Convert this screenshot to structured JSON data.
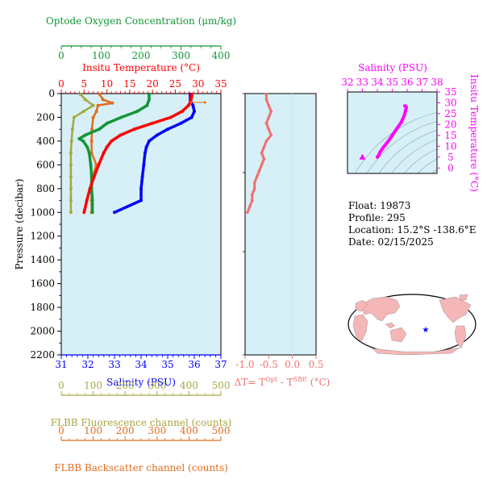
{
  "colors": {
    "panel_bg": "#d7f0f7",
    "oxygen": "#129637",
    "temperature": "#ff0000",
    "salinity": "#0000ff",
    "fluorescence": "#a6a642",
    "backscatter": "#e06c1d",
    "delta_t": "#f07070",
    "ts": "#ff00ff",
    "land": "#f4b6b6",
    "ocean": "#ffffff",
    "float_marker": "#0000ff"
  },
  "info": {
    "float": "Float:  19873",
    "profile": "Profile:  295",
    "location": "Location:  15.2°S  -138.6°E",
    "date": "Date:  02/15/2025"
  },
  "chart_data": [
    {
      "id": "profile",
      "type": "line",
      "ylabel": "Pressure (decibar)",
      "ylim": [
        2200,
        0
      ],
      "yticks": [
        0,
        200,
        400,
        600,
        800,
        1000,
        1200,
        1400,
        1600,
        1800,
        2000,
        2200
      ],
      "axes": {
        "oxygen": {
          "label": "Optode Oxygen Concentration (μm/kg)",
          "lim": [
            0,
            400
          ],
          "ticks": [
            0,
            100,
            200,
            300,
            400
          ]
        },
        "temperature": {
          "label": "Insitu Temperature (°C)",
          "lim": [
            0,
            35
          ],
          "ticks": [
            0,
            5,
            10,
            15,
            20,
            25,
            30,
            35
          ]
        },
        "salinity": {
          "label": "Salinity (PSU)",
          "lim": [
            31,
            37
          ],
          "ticks": [
            31,
            32,
            33,
            34,
            35,
            36,
            37
          ]
        },
        "fluorescence": {
          "label": "FLBB Fluorescence channel (counts)",
          "lim": [
            0,
            500
          ],
          "ticks": [
            0,
            100,
            200,
            300,
            400,
            500
          ]
        },
        "backscatter": {
          "label": "FLBB Backscatter channel (counts)",
          "lim": [
            0,
            500
          ],
          "ticks": [
            0,
            100,
            200,
            300,
            400,
            500
          ]
        }
      },
      "series": [
        {
          "key": "temperature",
          "p": [
            5,
            20,
            40,
            60,
            80,
            100,
            150,
            200,
            250,
            300,
            350,
            400,
            450,
            500,
            600,
            700,
            800,
            900,
            1000
          ],
          "v": [
            28.6,
            28.6,
            28.5,
            28.4,
            28.2,
            27.9,
            26.5,
            24.0,
            20.0,
            16.0,
            13.0,
            11.0,
            10.0,
            9.3,
            8.2,
            7.2,
            6.3,
            5.6,
            5.0
          ]
        },
        {
          "key": "salinity",
          "p": [
            5,
            20,
            40,
            60,
            80,
            100,
            150,
            200,
            250,
            300,
            350,
            400,
            450,
            500,
            600,
            700,
            800,
            900,
            1000
          ],
          "v": [
            35.85,
            35.85,
            35.85,
            35.85,
            35.9,
            35.95,
            36.0,
            35.9,
            35.5,
            35.0,
            34.6,
            34.3,
            34.2,
            34.15,
            34.1,
            34.05,
            34.0,
            34.0,
            33.0
          ]
        },
        {
          "key": "oxygen",
          "p": [
            5,
            50,
            100,
            150,
            200,
            250,
            300,
            350,
            380,
            400,
            450,
            500,
            600,
            700,
            800,
            900,
            1000
          ],
          "v": [
            220,
            220,
            215,
            190,
            150,
            115,
            95,
            60,
            45,
            55,
            65,
            70,
            74,
            76,
            76,
            78,
            78
          ]
        },
        {
          "key": "fluorescence",
          "p": [
            5,
            50,
            100,
            150,
            200,
            300,
            400,
            500,
            600,
            700,
            800,
            900,
            1000
          ],
          "v": [
            60,
            75,
            100,
            70,
            40,
            35,
            32,
            30,
            30,
            30,
            30,
            30,
            30
          ]
        },
        {
          "key": "backscatter",
          "p": [
            5,
            50,
            80,
            100,
            150,
            200,
            300,
            400,
            500,
            600,
            700,
            800,
            900,
            1000
          ],
          "v": [
            120,
            130,
            160,
            115,
            110,
            100,
            96,
            95,
            95,
            110,
            98,
            95,
            95,
            95
          ]
        },
        {
          "key": "temperature_surface_outlier",
          "p": [
            75,
            75
          ],
          "v": [
            28.5,
            31.5
          ]
        }
      ]
    },
    {
      "id": "delta_t",
      "type": "line",
      "xlabel": "ΔT= T^Opt - T^SBE (°C)",
      "xlim": [
        -1.0,
        0.5
      ],
      "xticks": [
        -1.0,
        -0.5,
        0.0,
        0.5
      ],
      "xtick_labels": [
        "-1.0",
        "-0.5",
        "0.0",
        "0.5"
      ],
      "ylim": [
        2200,
        0
      ],
      "series": [
        {
          "name": "ΔT",
          "p": [
            5,
            50,
            100,
            150,
            200,
            250,
            300,
            350,
            400,
            450,
            500,
            550,
            600,
            650,
            700,
            750,
            800,
            850,
            900,
            950,
            1000
          ],
          "v": [
            -0.55,
            -0.55,
            -0.5,
            -0.45,
            -0.5,
            -0.55,
            -0.5,
            -0.45,
            -0.55,
            -0.6,
            -0.65,
            -0.6,
            -0.65,
            -0.7,
            -0.75,
            -0.8,
            -0.8,
            -0.85,
            -0.85,
            -0.9,
            -0.95
          ]
        }
      ]
    },
    {
      "id": "ts",
      "type": "scatter",
      "xlabel": "Salinity (PSU)",
      "ylabel": "Insitu Temperature (°C)",
      "xlim": [
        32,
        38
      ],
      "ylim": [
        -2.5,
        35
      ],
      "xticks": [
        32,
        33,
        34,
        35,
        36,
        37,
        38
      ],
      "yticks": [
        0,
        5,
        10,
        15,
        20,
        25,
        30,
        35
      ],
      "series": [
        {
          "name": "T-S",
          "s": [
            34.0,
            34.1,
            34.2,
            34.4,
            34.7,
            35.0,
            35.3,
            35.6,
            35.8,
            35.9,
            35.95,
            35.85
          ],
          "t": [
            5.0,
            6.0,
            7.5,
            9.5,
            12.0,
            15.0,
            18.0,
            21.0,
            24.0,
            26.5,
            28.0,
            28.6
          ]
        },
        {
          "name": "start",
          "s": [
            33.0
          ],
          "t": [
            5.0
          ]
        }
      ]
    }
  ]
}
